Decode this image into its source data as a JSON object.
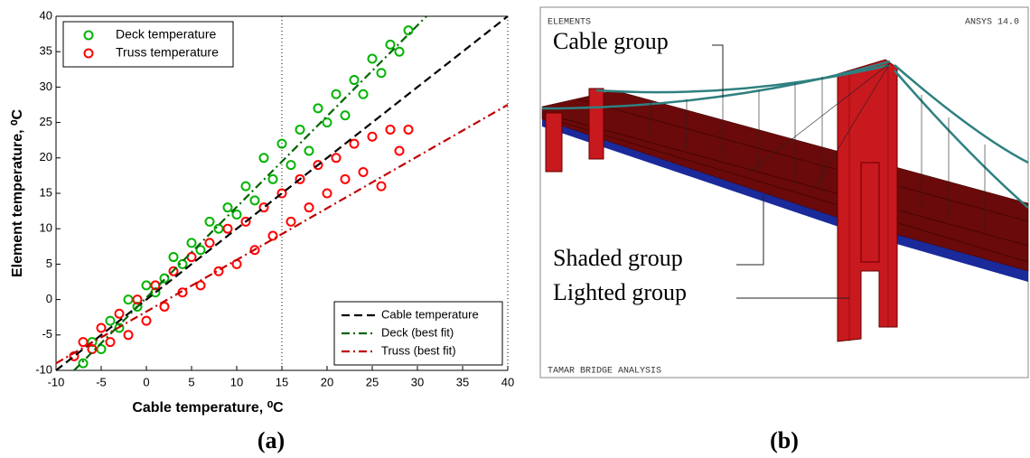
{
  "chart_data": {
    "type": "scatter",
    "xlabel": "Cable temperature, ⁰C",
    "ylabel": "Element temperature, ⁰C",
    "panel_label": "(a)",
    "xlim": [
      -10,
      40
    ],
    "ylim": [
      -10,
      40
    ],
    "xticks": [
      -10,
      -5,
      0,
      5,
      10,
      15,
      20,
      25,
      30,
      35,
      40
    ],
    "yticks": [
      -10,
      -5,
      0,
      5,
      10,
      15,
      20,
      25,
      30,
      35,
      40
    ],
    "reference_lines": [
      15
    ],
    "series": [
      {
        "name": "Deck temperature",
        "color": "#00b400",
        "mode": "markers",
        "legend": "upper left",
        "x": [
          -7,
          -6,
          -5,
          -4,
          -3,
          -2,
          -1,
          0,
          1,
          2,
          3,
          4,
          5,
          6,
          7,
          8,
          9,
          10,
          11,
          12,
          13,
          14,
          15,
          16,
          17,
          18,
          19,
          20,
          21,
          22,
          23,
          24,
          25,
          26,
          27,
          28,
          29
        ],
        "values": [
          -9,
          -6,
          -7,
          -3,
          -4,
          0,
          -1,
          2,
          1,
          3,
          6,
          5,
          8,
          7,
          11,
          10,
          13,
          12,
          16,
          14,
          20,
          17,
          22,
          19,
          24,
          21,
          27,
          25,
          29,
          26,
          31,
          29,
          34,
          32,
          36,
          35,
          38
        ]
      },
      {
        "name": "Truss temperature",
        "color": "#ff0000",
        "mode": "markers",
        "legend": "upper left",
        "x": [
          -8,
          -7,
          -6,
          -5,
          -4,
          -3,
          -2,
          -1,
          0,
          1,
          2,
          3,
          4,
          5,
          6,
          7,
          8,
          9,
          10,
          11,
          12,
          13,
          14,
          15,
          16,
          17,
          18,
          19,
          20,
          21,
          22,
          23,
          24,
          25,
          26,
          27,
          28,
          29
        ],
        "values": [
          -8,
          -6,
          -7,
          -4,
          -6,
          -2,
          -5,
          0,
          -3,
          2,
          -1,
          4,
          1,
          6,
          2,
          8,
          4,
          10,
          5,
          11,
          7,
          13,
          9,
          15,
          11,
          17,
          13,
          19,
          15,
          20,
          17,
          22,
          18,
          23,
          16,
          24,
          21,
          24
        ]
      },
      {
        "name": "Cable temperature",
        "color": "#000000",
        "mode": "line",
        "dash": "dashed",
        "legend": "lower right",
        "x": [
          -10,
          40
        ],
        "values": [
          -10,
          40
        ]
      },
      {
        "name": "Deck (best fit)",
        "color": "#006400",
        "mode": "line",
        "dash": "dashdot",
        "legend": "lower right",
        "x": [
          -8,
          31
        ],
        "values": [
          -10,
          40
        ]
      },
      {
        "name": "Truss (best fit)",
        "color": "#c00000",
        "mode": "line",
        "dash": "dashdot",
        "legend": "lower right",
        "x": [
          -10,
          40
        ],
        "values": [
          -9,
          27.5
        ]
      }
    ]
  },
  "panel_b": {
    "header_left": "ELEMENTS",
    "header_right": "ANSYS 14.0",
    "footer": "TAMAR BRIDGE ANALYSIS",
    "labels": [
      "Cable group",
      "Shaded group",
      "Lighted group"
    ],
    "panel_label": "(b)"
  }
}
